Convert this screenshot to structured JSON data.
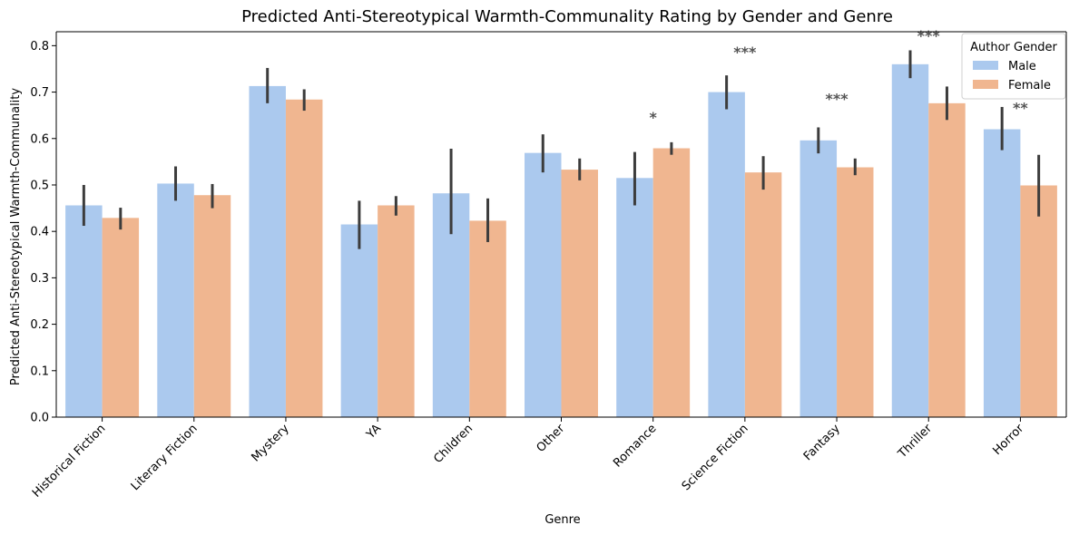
{
  "chart_data": {
    "type": "bar",
    "title": "Predicted Anti-Stereotypical Warmth-Communality Rating by Gender and Genre",
    "xlabel": "Genre",
    "ylabel": "Predicted Anti-Stereotypical Warmth-Communality",
    "ylim": [
      0,
      0.83
    ],
    "yticks": [
      "0.0",
      "0.1",
      "0.2",
      "0.3",
      "0.4",
      "0.5",
      "0.6",
      "0.7",
      "0.8"
    ],
    "grid": false,
    "categories": [
      "Historical Fiction",
      "Literary Fiction",
      "Mystery",
      "YA",
      "Children",
      "Other",
      "Romance",
      "Science Fiction",
      "Fantasy",
      "Thriller",
      "Horror"
    ],
    "series": [
      {
        "name": "Male",
        "color": "#abc9ee",
        "values": [
          0.456,
          0.503,
          0.713,
          0.415,
          0.482,
          0.569,
          0.515,
          0.7,
          0.596,
          0.76,
          0.62
        ],
        "err_low": [
          0.412,
          0.466,
          0.676,
          0.362,
          0.394,
          0.527,
          0.456,
          0.663,
          0.568,
          0.73,
          0.575
        ],
        "err_high": [
          0.5,
          0.54,
          0.752,
          0.466,
          0.578,
          0.609,
          0.571,
          0.736,
          0.624,
          0.79,
          0.668
        ]
      },
      {
        "name": "Female",
        "color": "#f0b690",
        "values": [
          0.429,
          0.478,
          0.684,
          0.456,
          0.423,
          0.533,
          0.579,
          0.527,
          0.538,
          0.676,
          0.499
        ],
        "err_low": [
          0.404,
          0.45,
          0.66,
          0.434,
          0.377,
          0.51,
          0.565,
          0.49,
          0.521,
          0.64,
          0.432
        ],
        "err_high": [
          0.451,
          0.502,
          0.706,
          0.476,
          0.471,
          0.557,
          0.592,
          0.562,
          0.557,
          0.712,
          0.565
        ]
      }
    ],
    "annotations": [
      {
        "category": "Romance",
        "text": "*",
        "y": 0.635
      },
      {
        "category": "Science Fiction",
        "text": "***",
        "y": 0.775
      },
      {
        "category": "Fantasy",
        "text": "***",
        "y": 0.675
      },
      {
        "category": "Thriller",
        "text": "***",
        "y": 0.81
      },
      {
        "category": "Horror",
        "text": "**",
        "y": 0.655
      }
    ],
    "legend": {
      "title": "Author Gender",
      "placement": "top-right",
      "entries": [
        "Male",
        "Female"
      ]
    },
    "errorbar_color": "#3c3c3c"
  }
}
